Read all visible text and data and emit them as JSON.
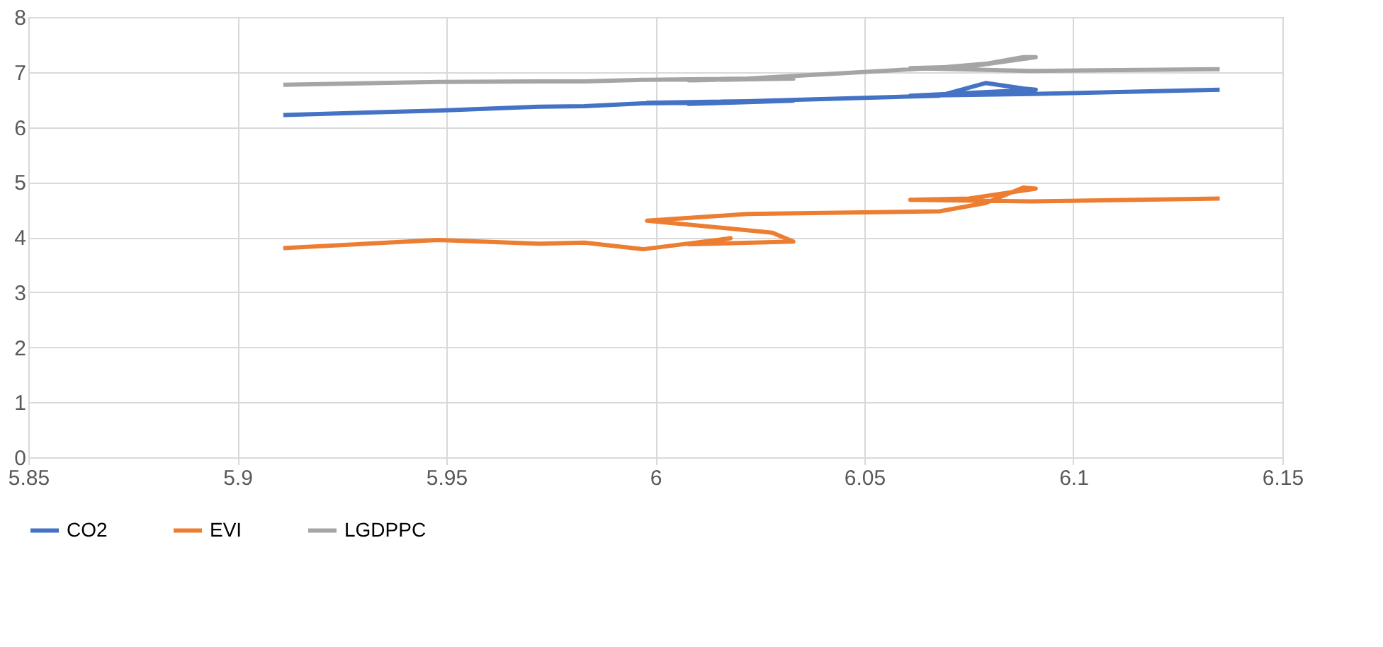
{
  "chart_data": {
    "type": "line",
    "x": [
      5.911,
      5.948,
      5.972,
      5.983,
      5.997,
      6.018,
      6.008,
      6.033,
      6.028,
      5.998,
      6.022,
      6.068,
      6.079,
      6.088,
      6.091,
      6.075,
      6.061,
      6.09,
      6.135
    ],
    "series": [
      {
        "name": "CO2",
        "color": "#4472c4",
        "values": [
          6.22,
          6.3,
          6.37,
          6.38,
          6.43,
          6.45,
          6.42,
          6.48,
          6.47,
          6.44,
          6.47,
          6.57,
          6.8,
          6.7,
          6.68,
          6.62,
          6.57,
          6.6,
          6.68
        ]
      },
      {
        "name": "EVI",
        "color": "#ed7d31",
        "values": [
          3.8,
          3.95,
          3.88,
          3.9,
          3.78,
          3.98,
          3.87,
          3.92,
          4.08,
          4.3,
          4.42,
          4.47,
          4.62,
          4.9,
          4.88,
          4.7,
          4.68,
          4.65,
          4.7
        ]
      },
      {
        "name": "LGDPPC",
        "color": "#a5a5a5",
        "values": [
          6.77,
          6.82,
          6.83,
          6.83,
          6.86,
          6.87,
          6.85,
          6.88,
          6.88,
          6.86,
          6.88,
          7.08,
          7.15,
          7.27,
          7.27,
          7.1,
          7.07,
          7.02,
          7.05
        ]
      }
    ],
    "xlim": [
      5.85,
      6.15
    ],
    "xticks": [
      5.85,
      5.9,
      5.95,
      6,
      6.05,
      6.1,
      6.15
    ],
    "ylim": [
      0,
      8
    ],
    "yticks": [
      0,
      1,
      2,
      3,
      4,
      5,
      6,
      7,
      8
    ],
    "grid": true,
    "legend": "bottom",
    "marker": "none",
    "line_style": "solid"
  }
}
